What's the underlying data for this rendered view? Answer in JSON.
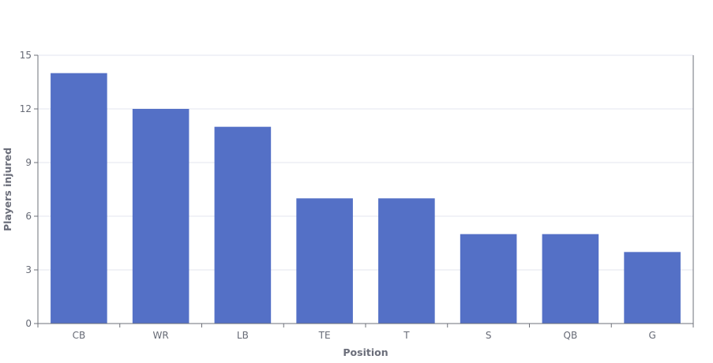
{
  "chart_data": {
    "type": "bar",
    "categories": [
      "CB",
      "WR",
      "LB",
      "TE",
      "T",
      "S",
      "QB",
      "G"
    ],
    "values": [
      14,
      12,
      11,
      7,
      7,
      5,
      5,
      4
    ],
    "xlabel": "Position",
    "ylabel": "Players injured",
    "ylim": [
      0,
      15
    ],
    "yticks": [
      "0",
      "3",
      "6",
      "9",
      "12",
      "15"
    ],
    "grid": true,
    "legend": "none",
    "bar_color": "#5470c6",
    "grid_color": "#e3e5ef",
    "axis_color": "#6e7079"
  }
}
